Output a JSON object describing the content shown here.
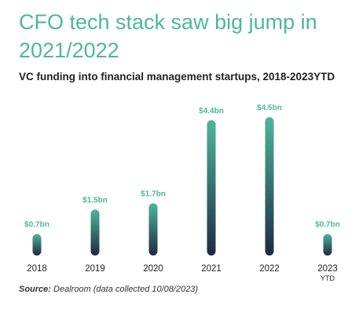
{
  "title": "CFO tech stack saw big jump in 2021/2022",
  "subtitle": "VC funding into financial management startups, 2018-2023YTD",
  "source": {
    "label": "Source:",
    "text": "Dealroom (data collected 10/08/2023)"
  },
  "colors": {
    "title": "#4db898",
    "label": "#4db898",
    "bar_top": "#4fb59a",
    "bar_bottom": "#1e2a44"
  },
  "chart_data": {
    "type": "bar",
    "categories": [
      "2018",
      "2019",
      "2020",
      "2021",
      "2022",
      "2023"
    ],
    "category_sublabels": [
      "",
      "",
      "",
      "",
      "",
      "YTD"
    ],
    "values": [
      0.7,
      1.5,
      1.7,
      4.4,
      4.5,
      0.7
    ],
    "value_labels": [
      "$0.7bn",
      "$1.5bn",
      "$1.7bn",
      "$4.4bn",
      "$4.5bn",
      "$0.7bn"
    ],
    "ylim": [
      0,
      4.5
    ],
    "grid": false,
    "legend": false
  }
}
